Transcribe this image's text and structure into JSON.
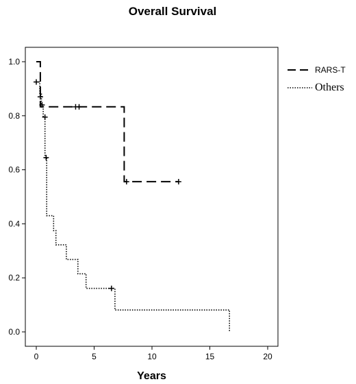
{
  "chart_data": {
    "type": "line",
    "title": "Overall Survival",
    "xlabel": "Years",
    "ylabel": "",
    "xlim": [
      -1,
      22
    ],
    "ylim": [
      -0.04,
      1.06
    ],
    "x_ticks": [
      0,
      5,
      10,
      15,
      20
    ],
    "x_tick_labels": [
      "0",
      "5",
      "10",
      "15",
      "20"
    ],
    "y_ticks": [
      0.0,
      0.2,
      0.4,
      0.6,
      0.8,
      1.0
    ],
    "y_tick_labels": [
      "0.0",
      "0.2",
      "0.4",
      "0.6",
      "0.8",
      "1.0"
    ],
    "grid": false,
    "legend_position": "right",
    "series": [
      {
        "name": "RARS-T",
        "line_style": "dashed",
        "color": "#000000",
        "steps": [
          [
            0,
            1.0
          ],
          [
            0.35,
            1.0
          ],
          [
            0.35,
            0.833
          ],
          [
            7.6,
            0.833
          ],
          [
            7.6,
            0.556
          ],
          [
            12.3,
            0.556
          ]
        ],
        "censored": [
          [
            0.35,
            0.87
          ],
          [
            3.4,
            0.833
          ],
          [
            3.7,
            0.833
          ],
          [
            7.8,
            0.556
          ],
          [
            12.3,
            0.556
          ]
        ]
      },
      {
        "name": "Others",
        "line_style": "dotted",
        "color": "#000000",
        "steps": [
          [
            0,
            0.925
          ],
          [
            0.3,
            0.925
          ],
          [
            0.3,
            0.88
          ],
          [
            0.45,
            0.88
          ],
          [
            0.45,
            0.84
          ],
          [
            0.6,
            0.84
          ],
          [
            0.6,
            0.795
          ],
          [
            0.75,
            0.795
          ],
          [
            0.75,
            0.645
          ],
          [
            0.9,
            0.645
          ],
          [
            0.9,
            0.43
          ],
          [
            1.5,
            0.43
          ],
          [
            1.5,
            0.375
          ],
          [
            1.7,
            0.375
          ],
          [
            1.7,
            0.322
          ],
          [
            2.6,
            0.322
          ],
          [
            2.6,
            0.268
          ],
          [
            3.6,
            0.268
          ],
          [
            3.6,
            0.215
          ],
          [
            4.3,
            0.215
          ],
          [
            4.3,
            0.161
          ],
          [
            6.8,
            0.161
          ],
          [
            6.8,
            0.081
          ],
          [
            16.7,
            0.081
          ],
          [
            16.7,
            0.0
          ]
        ],
        "censored": [
          [
            0,
            0.925
          ],
          [
            0.5,
            0.84
          ],
          [
            0.75,
            0.795
          ],
          [
            0.85,
            0.645
          ],
          [
            6.5,
            0.161
          ]
        ]
      }
    ]
  }
}
